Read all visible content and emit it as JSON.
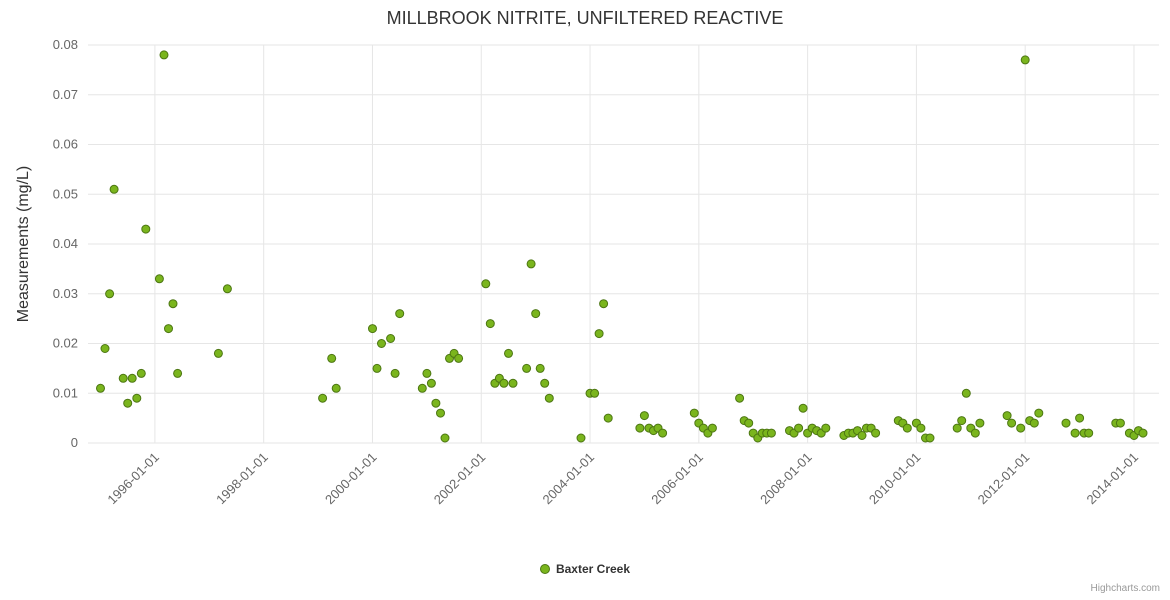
{
  "title": "MILLBROOK NITRITE, UNFILTERED REACTIVE",
  "credits": "Highcharts.com",
  "legend": [
    {
      "name": "Baxter Creek",
      "color": "#7ab51d",
      "line_color": "#4c7612"
    }
  ],
  "chart_data": {
    "type": "scatter",
    "title": "MILLBROOK NITRITE, UNFILTERED REACTIVE",
    "xlabel": "",
    "ylabel": "Measurements (mg/L)",
    "ylim": [
      0,
      0.08
    ],
    "y_ticks": [
      0,
      0.01,
      0.02,
      0.03,
      0.04,
      0.05,
      0.06,
      0.07,
      0.08
    ],
    "x_ticks": [
      "1996-01-01",
      "1998-01-01",
      "2000-01-01",
      "2002-01-01",
      "2004-01-01",
      "2006-01-01",
      "2008-01-01",
      "2010-01-01",
      "2012-01-01",
      "2014-01-01"
    ],
    "grid": true,
    "legend_position": "bottom-center",
    "marker_radius": 4,
    "series": [
      {
        "name": "Baxter Creek",
        "color": "#7ab51d",
        "line_color": "#4c7612",
        "points": [
          [
            "1995-01",
            0.011
          ],
          [
            "1995-02",
            0.019
          ],
          [
            "1995-03",
            0.03
          ],
          [
            "1995-04",
            0.051
          ],
          [
            "1995-06",
            0.013
          ],
          [
            "1995-07",
            0.008
          ],
          [
            "1995-08",
            0.013
          ],
          [
            "1995-09",
            0.009
          ],
          [
            "1995-10",
            0.014
          ],
          [
            "1995-11",
            0.043
          ],
          [
            "1996-02",
            0.033
          ],
          [
            "1996-03",
            0.078
          ],
          [
            "1996-04",
            0.023
          ],
          [
            "1996-05",
            0.028
          ],
          [
            "1996-06",
            0.014
          ],
          [
            "1997-03",
            0.018
          ],
          [
            "1997-05",
            0.031
          ],
          [
            "1999-02",
            0.009
          ],
          [
            "1999-04",
            0.017
          ],
          [
            "1999-05",
            0.011
          ],
          [
            "2000-01",
            0.023
          ],
          [
            "2000-02",
            0.015
          ],
          [
            "2000-03",
            0.02
          ],
          [
            "2000-05",
            0.021
          ],
          [
            "2000-06",
            0.014
          ],
          [
            "2000-07",
            0.026
          ],
          [
            "2000-12",
            0.011
          ],
          [
            "2001-01",
            0.014
          ],
          [
            "2001-02",
            0.012
          ],
          [
            "2001-03",
            0.008
          ],
          [
            "2001-04",
            0.006
          ],
          [
            "2001-05",
            0.001
          ],
          [
            "2001-06",
            0.017
          ],
          [
            "2001-07",
            0.018
          ],
          [
            "2001-08",
            0.017
          ],
          [
            "2002-02",
            0.032
          ],
          [
            "2002-03",
            0.024
          ],
          [
            "2002-04",
            0.012
          ],
          [
            "2002-05",
            0.013
          ],
          [
            "2002-06",
            0.012
          ],
          [
            "2002-07",
            0.018
          ],
          [
            "2002-08",
            0.012
          ],
          [
            "2002-11",
            0.015
          ],
          [
            "2002-12",
            0.036
          ],
          [
            "2003-01",
            0.026
          ],
          [
            "2003-02",
            0.015
          ],
          [
            "2003-03",
            0.012
          ],
          [
            "2003-04",
            0.009
          ],
          [
            "2003-11",
            0.001
          ],
          [
            "2004-01",
            0.01
          ],
          [
            "2004-02",
            0.01
          ],
          [
            "2004-03",
            0.022
          ],
          [
            "2004-04",
            0.028
          ],
          [
            "2004-05",
            0.005
          ],
          [
            "2004-12",
            0.003
          ],
          [
            "2005-01",
            0.0055
          ],
          [
            "2005-02",
            0.003
          ],
          [
            "2005-03",
            0.0025
          ],
          [
            "2005-04",
            0.003
          ],
          [
            "2005-05",
            0.002
          ],
          [
            "2005-12",
            0.006
          ],
          [
            "2006-01",
            0.004
          ],
          [
            "2006-02",
            0.003
          ],
          [
            "2006-03",
            0.002
          ],
          [
            "2006-04",
            0.003
          ],
          [
            "2006-10",
            0.009
          ],
          [
            "2006-11",
            0.0045
          ],
          [
            "2006-12",
            0.004
          ],
          [
            "2007-01",
            0.002
          ],
          [
            "2007-02",
            0.001
          ],
          [
            "2007-03",
            0.002
          ],
          [
            "2007-04",
            0.002
          ],
          [
            "2007-05",
            0.002
          ],
          [
            "2007-09",
            0.0025
          ],
          [
            "2007-10",
            0.002
          ],
          [
            "2007-11",
            0.003
          ],
          [
            "2007-12",
            0.007
          ],
          [
            "2008-01",
            0.002
          ],
          [
            "2008-02",
            0.003
          ],
          [
            "2008-03",
            0.0025
          ],
          [
            "2008-04",
            0.002
          ],
          [
            "2008-05",
            0.003
          ],
          [
            "2008-09",
            0.0015
          ],
          [
            "2008-10",
            0.002
          ],
          [
            "2008-11",
            0.002
          ],
          [
            "2008-12",
            0.0025
          ],
          [
            "2009-01",
            0.0015
          ],
          [
            "2009-02",
            0.003
          ],
          [
            "2009-03",
            0.003
          ],
          [
            "2009-04",
            0.002
          ],
          [
            "2009-09",
            0.0045
          ],
          [
            "2009-10",
            0.004
          ],
          [
            "2009-11",
            0.003
          ],
          [
            "2010-01",
            0.004
          ],
          [
            "2010-02",
            0.003
          ],
          [
            "2010-03",
            0.001
          ],
          [
            "2010-04",
            0.001
          ],
          [
            "2010-10",
            0.003
          ],
          [
            "2010-11",
            0.0045
          ],
          [
            "2010-12",
            0.01
          ],
          [
            "2011-01",
            0.003
          ],
          [
            "2011-02",
            0.002
          ],
          [
            "2011-03",
            0.004
          ],
          [
            "2011-09",
            0.0055
          ],
          [
            "2011-10",
            0.004
          ],
          [
            "2011-12",
            0.003
          ],
          [
            "2012-01",
            0.077
          ],
          [
            "2012-02",
            0.0045
          ],
          [
            "2012-03",
            0.004
          ],
          [
            "2012-04",
            0.006
          ],
          [
            "2012-10",
            0.004
          ],
          [
            "2012-12",
            0.002
          ],
          [
            "2013-01",
            0.005
          ],
          [
            "2013-02",
            0.002
          ],
          [
            "2013-03",
            0.002
          ],
          [
            "2013-09",
            0.004
          ],
          [
            "2013-10",
            0.004
          ],
          [
            "2013-12",
            0.002
          ],
          [
            "2014-01",
            0.0015
          ],
          [
            "2014-02",
            0.0025
          ],
          [
            "2014-03",
            0.002
          ]
        ]
      }
    ]
  }
}
